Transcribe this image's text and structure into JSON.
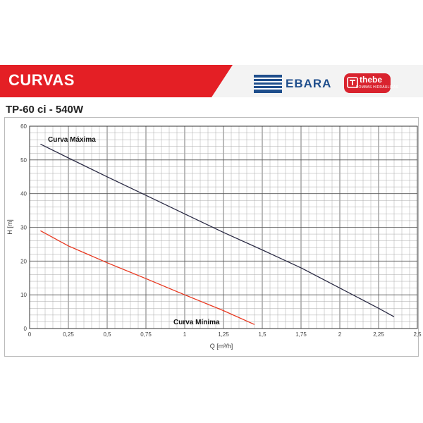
{
  "header": {
    "title": "CURVAS",
    "brand_left": "EBARA",
    "brand_right": "thebe",
    "brand_right_sub": "BOMBAS HIDRÁULICAS",
    "accent_color": "#e41f25",
    "brand_blue": "#1f4e8c"
  },
  "model": "TP-60 ci - 540W",
  "chart_data": {
    "type": "line",
    "xlabel": "Q [m³/h]",
    "ylabel": "H [m]",
    "xlim": [
      0,
      2.5
    ],
    "ylim": [
      0,
      60
    ],
    "x_ticks": [
      0,
      0.25,
      0.5,
      0.75,
      1,
      1.25,
      1.5,
      1.75,
      2,
      2.25,
      2.5
    ],
    "x_tick_labels": [
      "0",
      "0,25",
      "0,5",
      "0,75",
      "1",
      "1,25",
      "1,5",
      "1,75",
      "2",
      "2,25",
      "2,5"
    ],
    "y_ticks": [
      0,
      10,
      20,
      30,
      40,
      50,
      60
    ],
    "y_tick_labels": [
      "0",
      "10",
      "20",
      "30",
      "40",
      "50",
      "60"
    ],
    "grid": true,
    "series": [
      {
        "name": "Curva Máxima",
        "color": "#2a2a44",
        "x": [
          0.07,
          0.25,
          0.5,
          0.75,
          1.0,
          1.25,
          1.5,
          1.75,
          2.0,
          2.25,
          2.35
        ],
        "y": [
          54.7,
          50.6,
          45.0,
          39.5,
          34.0,
          28.5,
          23.3,
          18.0,
          12.0,
          6.0,
          3.5
        ]
      },
      {
        "name": "Curva Mínima",
        "color": "#e8371f",
        "x": [
          0.07,
          0.25,
          0.5,
          0.75,
          1.0,
          1.25,
          1.45
        ],
        "y": [
          29.0,
          24.5,
          19.5,
          14.8,
          10.0,
          5.3,
          1.2
        ]
      }
    ]
  }
}
